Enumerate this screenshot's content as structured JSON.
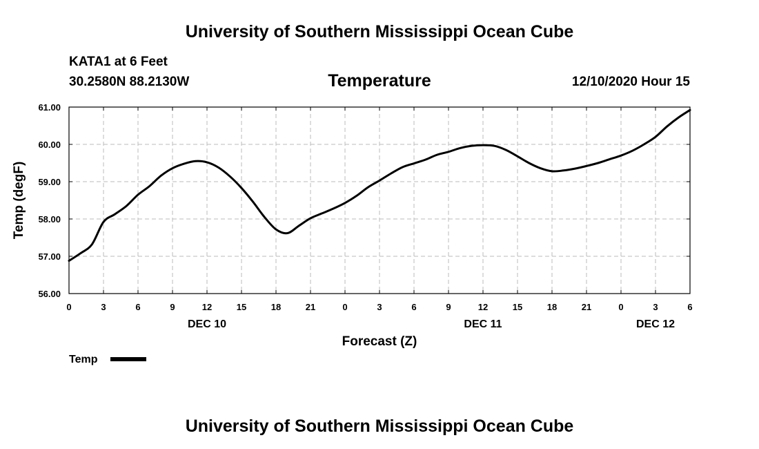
{
  "header": {
    "title": "University of Southern Mississippi Ocean Cube",
    "station": "KATA1 at 6 Feet",
    "location": "30.2580N 88.2130W",
    "variable": "Temperature",
    "datetime": "12/10/2020 Hour 15"
  },
  "footer": {
    "title": "University of Southern Mississippi Ocean Cube"
  },
  "legend": {
    "label": "Temp"
  },
  "chart_data": {
    "type": "line",
    "title": "Temperature",
    "xlabel": "Forecast (Z)",
    "ylabel": "Temp (degF)",
    "ylim": [
      56,
      61
    ],
    "xlim": [
      0,
      54
    ],
    "y_ticks": [
      "56.00",
      "57.00",
      "58.00",
      "59.00",
      "60.00",
      "61.00"
    ],
    "x_ticks": [
      {
        "h": 0,
        "label": "0"
      },
      {
        "h": 3,
        "label": "3"
      },
      {
        "h": 6,
        "label": "6"
      },
      {
        "h": 9,
        "label": "9"
      },
      {
        "h": 12,
        "label": "12"
      },
      {
        "h": 15,
        "label": "15"
      },
      {
        "h": 18,
        "label": "18"
      },
      {
        "h": 21,
        "label": "21"
      },
      {
        "h": 24,
        "label": "0"
      },
      {
        "h": 27,
        "label": "3"
      },
      {
        "h": 30,
        "label": "6"
      },
      {
        "h": 33,
        "label": "9"
      },
      {
        "h": 36,
        "label": "12"
      },
      {
        "h": 39,
        "label": "15"
      },
      {
        "h": 42,
        "label": "18"
      },
      {
        "h": 45,
        "label": "21"
      },
      {
        "h": 48,
        "label": "0"
      },
      {
        "h": 51,
        "label": "3"
      },
      {
        "h": 54,
        "label": "6"
      }
    ],
    "day_labels": [
      {
        "h": 12,
        "label": "DEC 10"
      },
      {
        "h": 36,
        "label": "DEC 11"
      },
      {
        "h": 51,
        "label": "DEC 12"
      }
    ],
    "grid": true,
    "series": [
      {
        "name": "Temp",
        "x": [
          0,
          1,
          2,
          3,
          4,
          5,
          6,
          7,
          8,
          9,
          10,
          11,
          12,
          13,
          14,
          15,
          16,
          17,
          18,
          19,
          20,
          21,
          22,
          23,
          24,
          25,
          26,
          27,
          28,
          29,
          30,
          31,
          32,
          33,
          34,
          35,
          36,
          37,
          38,
          39,
          40,
          41,
          42,
          43,
          44,
          45,
          46,
          47,
          48,
          49,
          50,
          51,
          52,
          53,
          54
        ],
        "values": [
          56.88,
          57.08,
          57.32,
          57.92,
          58.13,
          58.35,
          58.65,
          58.88,
          59.16,
          59.36,
          59.48,
          59.55,
          59.52,
          59.38,
          59.14,
          58.83,
          58.46,
          58.05,
          57.72,
          57.62,
          57.82,
          58.02,
          58.15,
          58.28,
          58.43,
          58.62,
          58.85,
          59.03,
          59.22,
          59.39,
          59.49,
          59.59,
          59.72,
          59.8,
          59.9,
          59.96,
          59.98,
          59.96,
          59.85,
          59.68,
          59.5,
          59.36,
          59.28,
          59.3,
          59.35,
          59.42,
          59.5,
          59.6,
          59.7,
          59.83,
          60.0,
          60.2,
          60.48,
          60.72,
          60.92
        ]
      }
    ]
  }
}
